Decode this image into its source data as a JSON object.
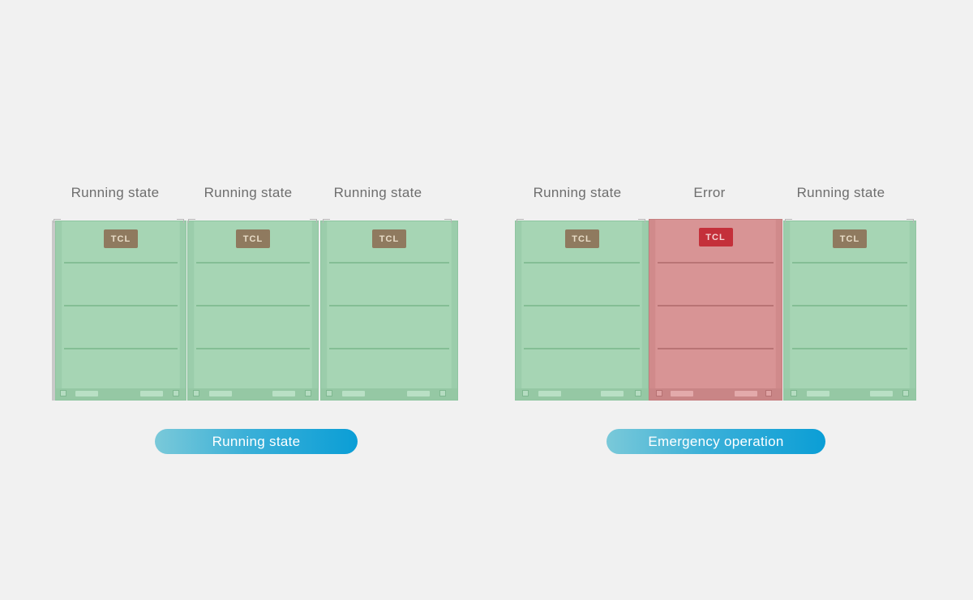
{
  "left_group": {
    "units": [
      {
        "label": "Running state",
        "logo": "TCL",
        "status": "running"
      },
      {
        "label": "Running state",
        "logo": "TCL",
        "status": "running"
      },
      {
        "label": "Running state",
        "logo": "TCL",
        "status": "running"
      }
    ],
    "pill_label": "Running state"
  },
  "right_group": {
    "units": [
      {
        "label": "Running state",
        "logo": "TCL",
        "status": "running"
      },
      {
        "label": "Error",
        "logo": "TCL",
        "status": "error"
      },
      {
        "label": "Running state",
        "logo": "TCL",
        "status": "running"
      }
    ],
    "pill_label": "Emergency operation"
  },
  "colors": {
    "background": "#f1f1f1",
    "running_unit": "#a3d3b2",
    "error_unit": "#d79192",
    "logo_brown": "#8f7a5f",
    "logo_red": "#c4303a",
    "pill_start": "#7ac9d9",
    "pill_end": "#0b9ed6"
  }
}
